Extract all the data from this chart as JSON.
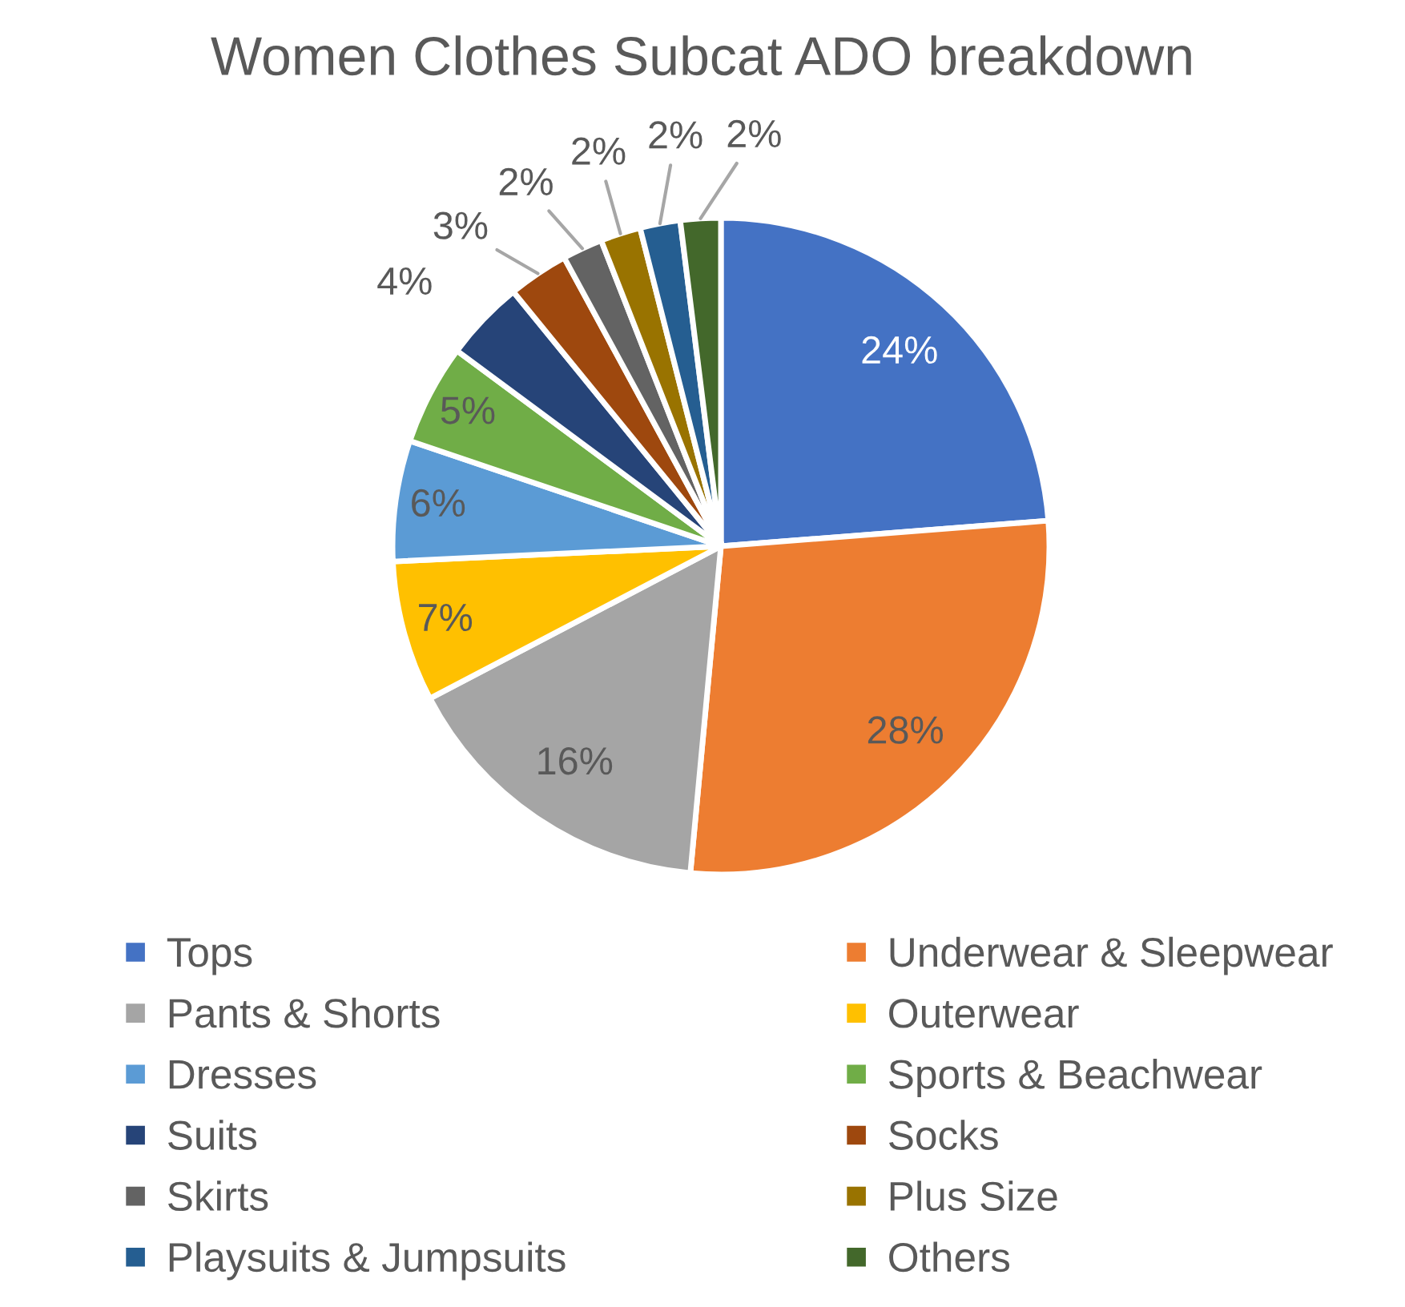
{
  "chart_data": {
    "type": "pie",
    "title": "Women Clothes Subcat ADO breakdown",
    "categories": [
      "Tops",
      "Underwear & Sleepwear",
      "Pants & Shorts",
      "Outerwear",
      "Dresses",
      "Sports & Beachwear",
      "Suits",
      "Socks",
      "Skirts",
      "Plus Size",
      "Playsuits & Jumpsuits",
      "Others"
    ],
    "values": [
      24,
      28,
      16,
      7,
      6,
      5,
      4,
      3,
      2,
      2,
      2,
      2
    ],
    "colors": [
      "#4472c4",
      "#ed7d31",
      "#a5a5a5",
      "#ffc000",
      "#5b9bd5",
      "#70ad47",
      "#264478",
      "#9e480e",
      "#636363",
      "#997300",
      "#255e91",
      "#43682b"
    ],
    "value_labels": [
      "24%",
      "28%",
      "16%",
      "7%",
      "6%",
      "5%",
      "4%",
      "3%",
      "2%",
      "2%",
      "2%",
      "2%"
    ],
    "legend": "bottom"
  }
}
